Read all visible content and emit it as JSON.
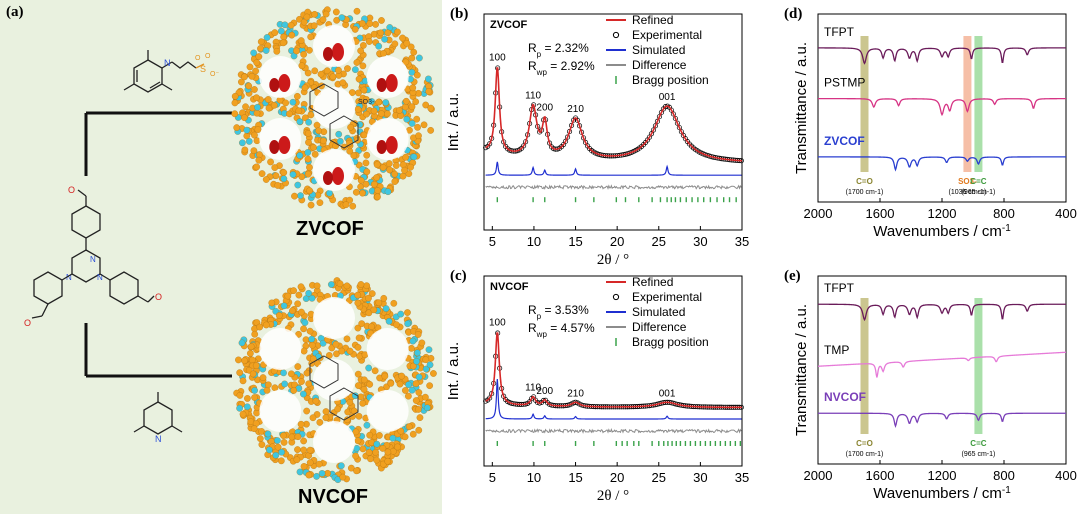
{
  "panel_a": {
    "label": "(a)",
    "cof_top": "ZVCOF",
    "cof_bottom": "NVCOF",
    "so3_label": "SO3-"
  },
  "colors": {
    "refined": "#d62828",
    "simulated": "#1f2fd0",
    "difference": "#8c8c8c",
    "bragg": "#3aa24a",
    "tfpt": "#6a1b5a",
    "pstmp": "#d63384",
    "zvcof": "#2a3fd0",
    "tmp": "#e67ad8",
    "nvcof": "#7a3fb8",
    "band_co": "#b9b36a",
    "band_so3": "#f3a98a",
    "band_cc": "#8ed68e",
    "sphere_orange": "#f0a020",
    "sphere_cyan": "#3ec6e0"
  },
  "chart_data": [
    {
      "type": "line",
      "panel": "(b)",
      "title": "ZVCOF",
      "xlabel": "2θ / °",
      "ylabel": "Int. / a.u.",
      "xlim": [
        4,
        35
      ],
      "xticks": [
        5,
        10,
        15,
        20,
        25,
        30,
        35
      ],
      "stats": [
        "R",
        "p",
        " = 2.32%",
        "R",
        "wp",
        " = 2.92%"
      ],
      "legend": [
        "Refined",
        "Experimental",
        "Simulated",
        "Difference",
        "Bragg position"
      ],
      "peaks": [
        {
          "hkl": "100",
          "x": 5.6,
          "y": 0.95
        },
        {
          "hkl": "110",
          "x": 9.9,
          "y": 0.55
        },
        {
          "hkl": "200",
          "x": 11.3,
          "y": 0.36
        },
        {
          "hkl": "210",
          "x": 15.0,
          "y": 0.45
        },
        {
          "hkl": "001",
          "x": 26.0,
          "y": 0.62
        }
      ],
      "bragg_positions": [
        5.6,
        9.9,
        11.3,
        15.0,
        17.2,
        19.9,
        21.0,
        22.6,
        24.2,
        25.2,
        26.0,
        26.5,
        27.0,
        27.6,
        28.3,
        29.0,
        29.7,
        30.4,
        31.2,
        32.0,
        32.8,
        33.5,
        34.3
      ]
    },
    {
      "type": "line",
      "panel": "(c)",
      "title": "NVCOF",
      "xlabel": "2θ / °",
      "ylabel": "Int. / a.u.",
      "xlim": [
        4,
        35
      ],
      "xticks": [
        5,
        10,
        15,
        20,
        25,
        30,
        35
      ],
      "stats": [
        "R",
        "p",
        " = 3.53%",
        "R",
        "wp",
        " = 4.57%"
      ],
      "legend": [
        "Refined",
        "Experimental",
        "Simulated",
        "Difference",
        "Bragg position"
      ],
      "peaks": [
        {
          "hkl": "100",
          "x": 5.6,
          "y": 1.0
        },
        {
          "hkl": "110",
          "x": 9.9,
          "y": 0.12
        },
        {
          "hkl": "200",
          "x": 11.3,
          "y": 0.08
        },
        {
          "hkl": "210",
          "x": 15.0,
          "y": 0.06
        },
        {
          "hkl": "001",
          "x": 26.0,
          "y": 0.07
        }
      ],
      "bragg_positions": [
        5.6,
        9.9,
        11.3,
        15.0,
        17.2,
        19.9,
        20.6,
        21.2,
        22.0,
        22.6,
        24.2,
        25.0,
        25.6,
        26.1,
        26.6,
        27.1,
        27.6,
        28.2,
        28.8,
        29.4,
        30.0,
        30.6,
        31.2,
        31.8,
        32.4,
        33.0,
        33.6,
        34.2,
        34.8
      ]
    },
    {
      "type": "line",
      "panel": "(d)",
      "xlabel": "Wavenumbers / cm-1",
      "ylabel": "Transmittance / a.u.",
      "xlim": [
        2000,
        400
      ],
      "x_reversed": true,
      "xticks": [
        2000,
        1600,
        1200,
        800,
        400
      ],
      "series": [
        {
          "name": "TFPT",
          "offset": 0.82
        },
        {
          "name": "PSTMP",
          "offset": 0.55
        },
        {
          "name": "ZVCOF",
          "offset": 0.24
        }
      ],
      "bands": [
        {
          "label": "C=O",
          "sub": "(1700 cm-1)",
          "x": 1700
        },
        {
          "label": "SO3-",
          "sub": "(1036 cm-1)",
          "x": 1036
        },
        {
          "label": "C=C",
          "sub": "(965 cm-1)",
          "x": 965
        }
      ]
    },
    {
      "type": "line",
      "panel": "(e)",
      "xlabel": "Wavenumbers / cm-1",
      "ylabel": "Transmittance / a.u.",
      "xlim": [
        2000,
        400
      ],
      "x_reversed": true,
      "xticks": [
        2000,
        1600,
        1200,
        800,
        400
      ],
      "series": [
        {
          "name": "TFPT",
          "offset": 0.85
        },
        {
          "name": "TMP",
          "offset": 0.52
        },
        {
          "name": "NVCOF",
          "offset": 0.27
        }
      ],
      "bands": [
        {
          "label": "C=O",
          "sub": "(1700 cm-1)",
          "x": 1700
        },
        {
          "label": "C=C",
          "sub": "(965 cm-1)",
          "x": 965
        }
      ]
    }
  ]
}
